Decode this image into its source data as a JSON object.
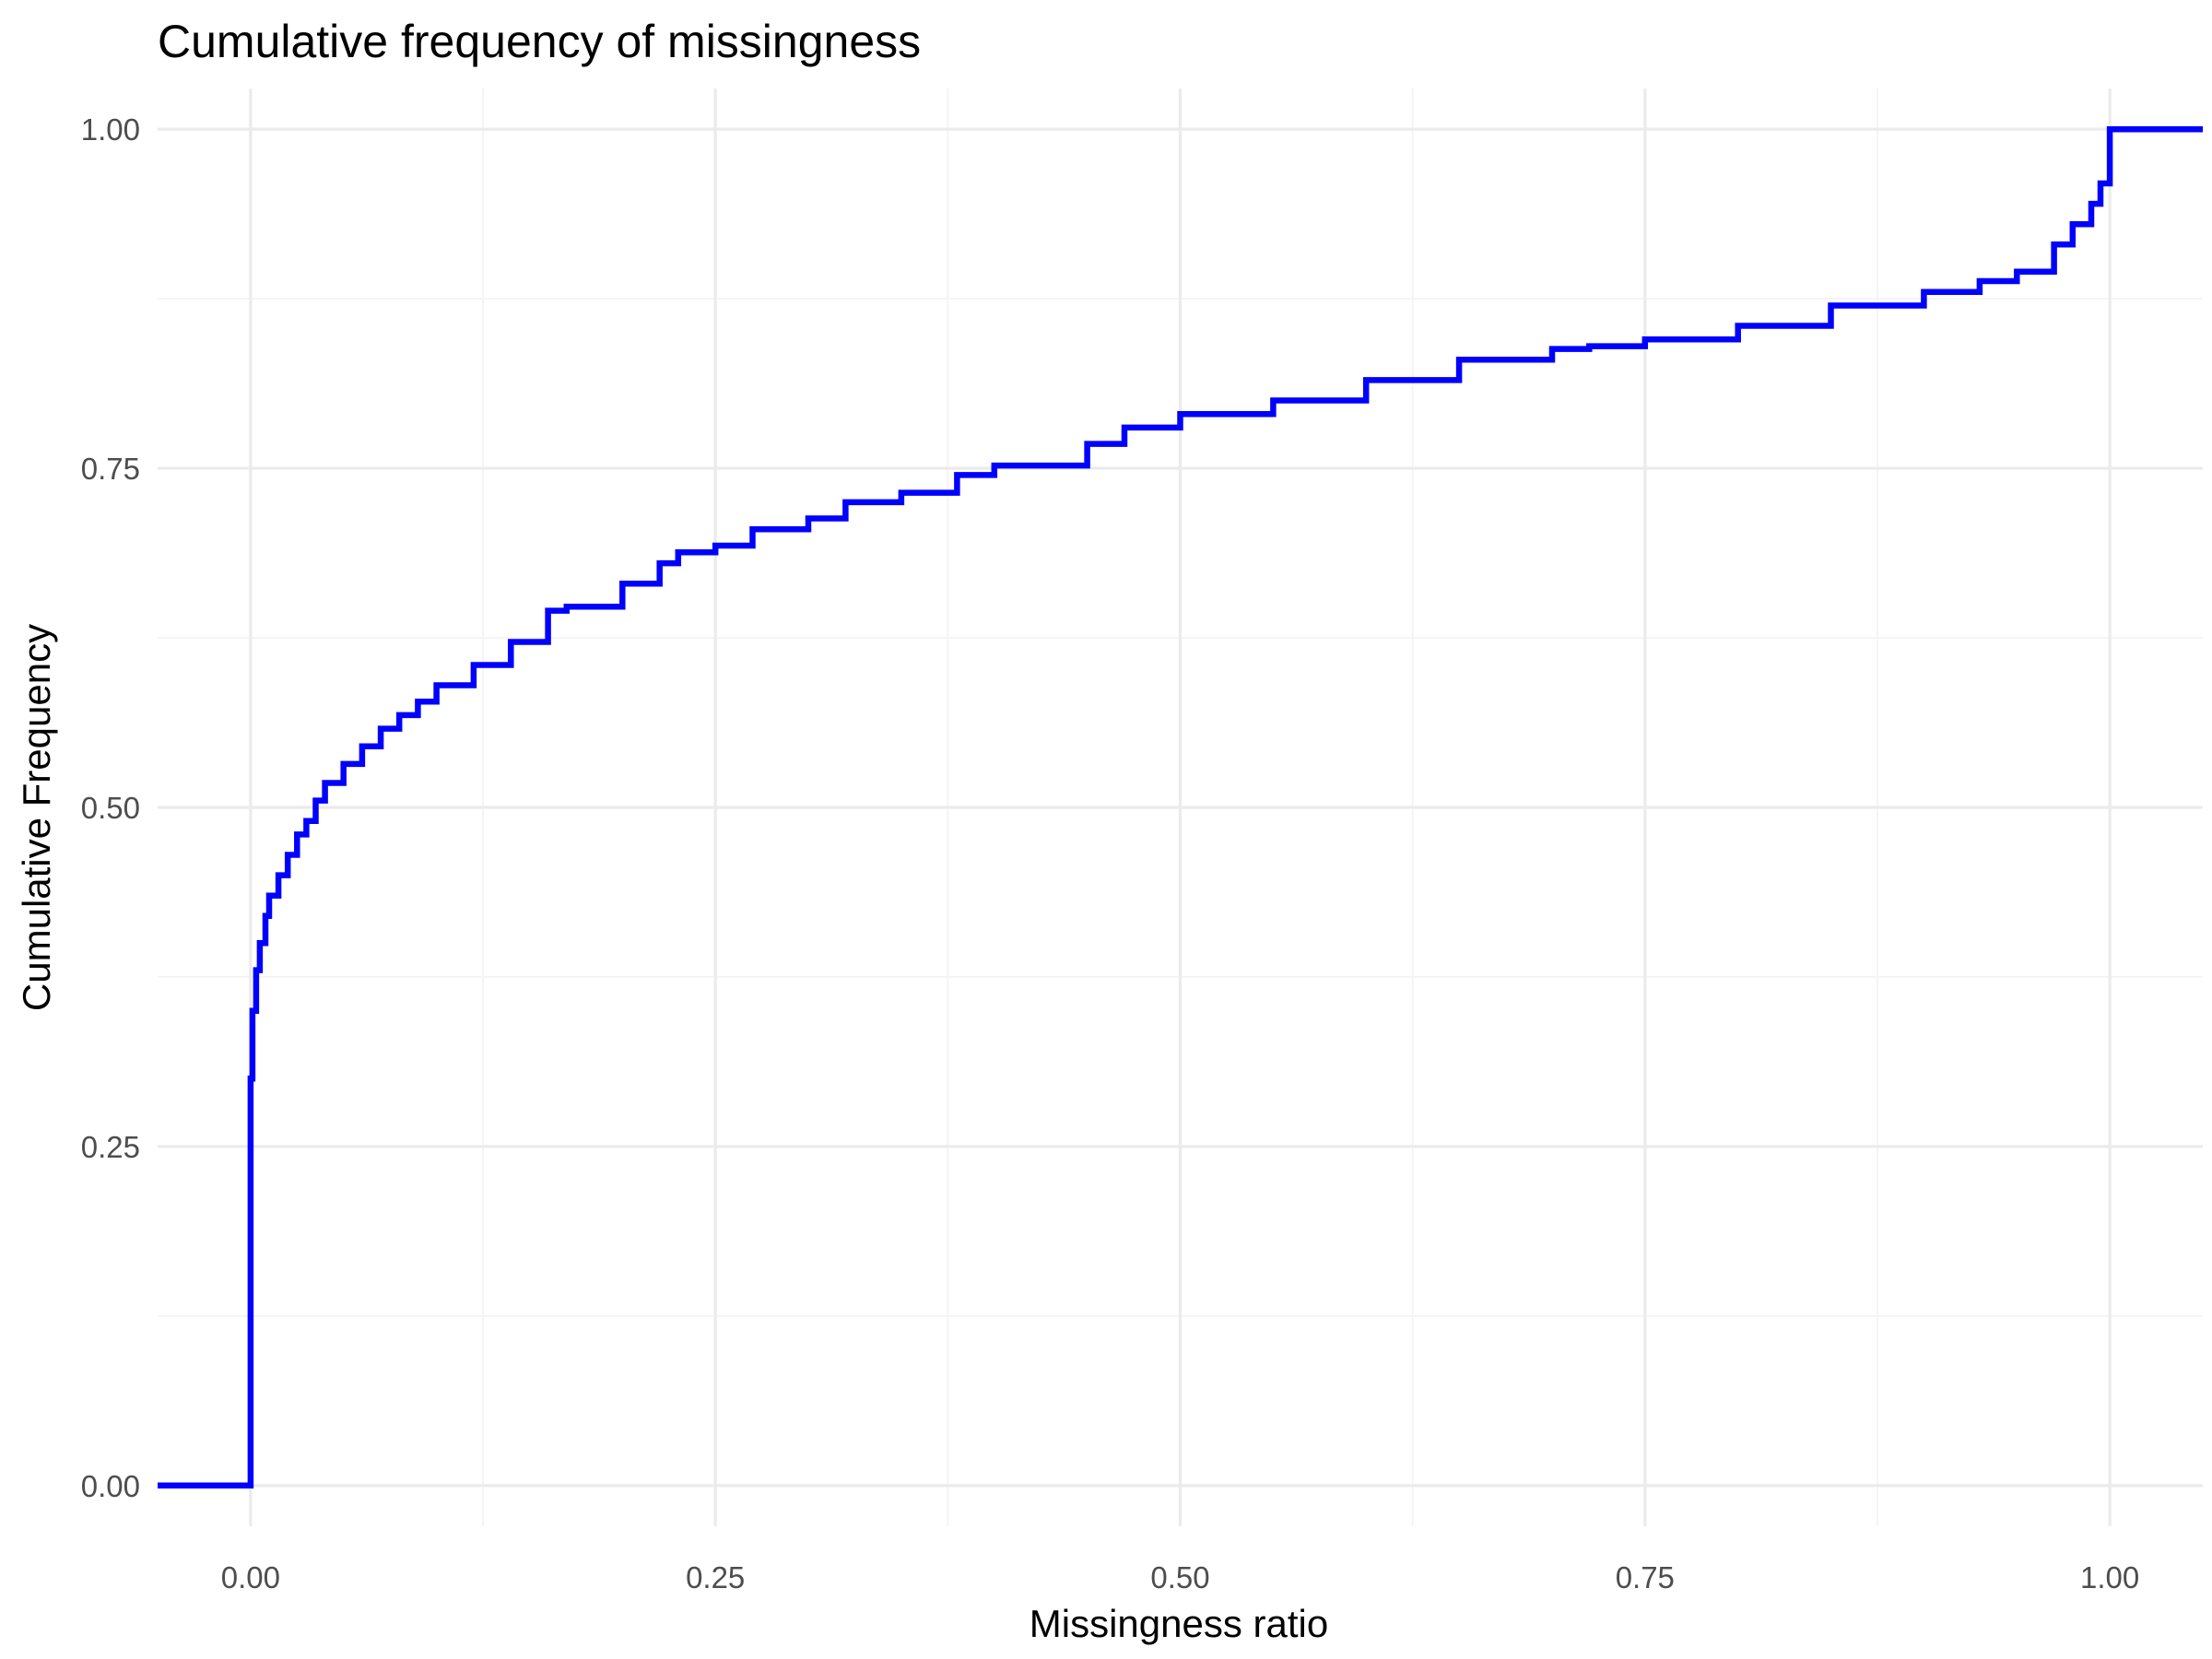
{
  "chart_data": {
    "type": "line",
    "step": true,
    "title": "Cumulative frequency of missingness",
    "xlabel": "Missingness ratio",
    "ylabel": "Cumulative Frequency",
    "xlim": [
      -0.05,
      1.05
    ],
    "ylim": [
      -0.03,
      1.03
    ],
    "x_ticks": [
      0.0,
      0.25,
      0.5,
      0.75,
      1.0
    ],
    "x_tick_labels": [
      "0.00",
      "0.25",
      "0.50",
      "0.75",
      "1.00"
    ],
    "y_ticks": [
      0.0,
      0.25,
      0.5,
      0.75,
      1.0
    ],
    "y_tick_labels": [
      "0.00",
      "0.25",
      "0.50",
      "0.75",
      "1.00"
    ],
    "grid": true,
    "legend": "none",
    "series": [
      {
        "color": "#0000ff",
        "x": [
          -0.05,
          0.0,
          0.0,
          0.001,
          0.001,
          0.003,
          0.003,
          0.005,
          0.005,
          0.008,
          0.01,
          0.015,
          0.02,
          0.025,
          0.03,
          0.035,
          0.04,
          0.05,
          0.06,
          0.07,
          0.08,
          0.09,
          0.1,
          0.12,
          0.14,
          0.16,
          0.17,
          0.2,
          0.22,
          0.23,
          0.25,
          0.27,
          0.3,
          0.32,
          0.35,
          0.38,
          0.4,
          0.45,
          0.47,
          0.5,
          0.55,
          0.6,
          0.65,
          0.7,
          0.72,
          0.75,
          0.8,
          0.85,
          0.9,
          0.93,
          0.95,
          0.97,
          0.98,
          0.99,
          0.995,
          1.0,
          1.0,
          1.05
        ],
        "y": [
          0.0,
          0.0,
          0.3,
          0.3,
          0.35,
          0.35,
          0.38,
          0.38,
          0.4,
          0.42,
          0.435,
          0.45,
          0.465,
          0.48,
          0.49,
          0.505,
          0.518,
          0.532,
          0.545,
          0.558,
          0.568,
          0.578,
          0.59,
          0.605,
          0.622,
          0.645,
          0.648,
          0.665,
          0.68,
          0.688,
          0.693,
          0.705,
          0.713,
          0.725,
          0.732,
          0.745,
          0.752,
          0.768,
          0.78,
          0.79,
          0.8,
          0.815,
          0.83,
          0.838,
          0.84,
          0.845,
          0.855,
          0.87,
          0.88,
          0.888,
          0.895,
          0.915,
          0.93,
          0.945,
          0.96,
          0.98,
          1.0,
          1.0
        ]
      }
    ]
  }
}
